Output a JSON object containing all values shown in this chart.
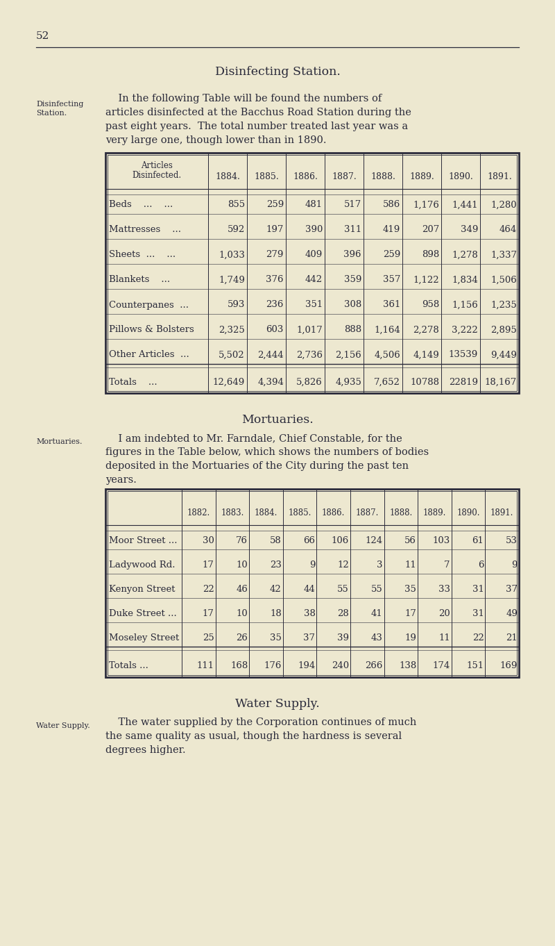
{
  "bg_color": "#ede8d0",
  "text_color": "#2a2a3a",
  "page_number": "52",
  "section1_title": "Disinfecting Station.",
  "section1_sidenote_line1": "Disinfecting",
  "section1_sidenote_line2": "Station.",
  "section1_para_lines": [
    "    In the following Table will be found the numbers of",
    "articles disinfected at the Bacchus Road Station during the",
    "past eight years.  The total number treated last year was a",
    "very large one, though lower than in 1890."
  ],
  "table1_header_col0_line1": "Articles",
  "table1_header_col0_line2": "Disinfected.",
  "table1_years": [
    "1884.",
    "1885.",
    "1886.",
    "1887.",
    "1888.",
    "1889.",
    "1890.",
    "1891."
  ],
  "table1_rows": [
    [
      "Beds    ...    ...",
      "855",
      "259",
      "481",
      "517",
      "586",
      "1,176",
      "1,441",
      "1,280"
    ],
    [
      "Mattresses    ...",
      "592",
      "197",
      "390",
      "311",
      "419",
      "207",
      "349",
      "464"
    ],
    [
      "Sheets  ...    ...",
      "1,033",
      "279",
      "409",
      "396",
      "259",
      "898",
      "1,278",
      "1,337"
    ],
    [
      "Blankets    ...",
      "1,749",
      "376",
      "442",
      "359",
      "357",
      "1,122",
      "1,834",
      "1,506"
    ],
    [
      "Counterpanes  ...",
      "593",
      "236",
      "351",
      "308",
      "361",
      "958",
      "1,156",
      "1,235"
    ],
    [
      "Pillows & Bolsters",
      "2,325",
      "603",
      "1,017",
      "888",
      "1,164",
      "2,278",
      "3,222",
      "2,895"
    ],
    [
      "Other Articles  ...",
      "5,502",
      "2,444",
      "2,736",
      "2,156",
      "4,506",
      "4,149",
      "13539",
      "9,449"
    ]
  ],
  "table1_totals": [
    "Totals    ...",
    "12,649",
    "4,394",
    "5,826",
    "4,935",
    "7,652",
    "10788",
    "22819",
    "18,167"
  ],
  "section2_title": "Mortuaries.",
  "section2_sidenote": "Mortuaries.",
  "section2_para_lines": [
    "    I am indebted to Mr. Farndale, Chief Constable, for the",
    "figures in the Table below, which shows the numbers of bodies",
    "deposited in the Mortuaries of the City during the past ten",
    "years."
  ],
  "table2_years": [
    "1882.",
    "1883.",
    "1884.",
    "1885.",
    "1886.",
    "1887.",
    "1888.",
    "1889.",
    "1890.",
    "1891."
  ],
  "table2_rows": [
    [
      "Moor Street ...",
      "30",
      "76",
      "58",
      "66",
      "106",
      "124",
      "56",
      "103",
      "61",
      "53"
    ],
    [
      "Ladywood Rd.",
      "17",
      "10",
      "23",
      "9",
      "12",
      "3",
      "11",
      "7",
      "6",
      "9"
    ],
    [
      "Kenyon Street",
      "22",
      "46",
      "42",
      "44",
      "55",
      "55",
      "35",
      "33",
      "31",
      "37"
    ],
    [
      "Duke Street ...",
      "17",
      "10",
      "18",
      "38",
      "28",
      "41",
      "17",
      "20",
      "31",
      "49"
    ],
    [
      "Moseley Street",
      "25",
      "26",
      "35",
      "37",
      "39",
      "43",
      "19",
      "11",
      "22",
      "21"
    ]
  ],
  "table2_totals": [
    "Totals ...",
    "111",
    "168",
    "176",
    "194",
    "240",
    "266",
    "138",
    "174",
    "151",
    "169"
  ],
  "section3_title": "Water Supply.",
  "section3_sidenote": "Water Supply.",
  "section3_para_lines": [
    "    The water supplied by the Corporation continues of much",
    "the same quality as usual, though the hardness is several",
    "degrees higher."
  ]
}
